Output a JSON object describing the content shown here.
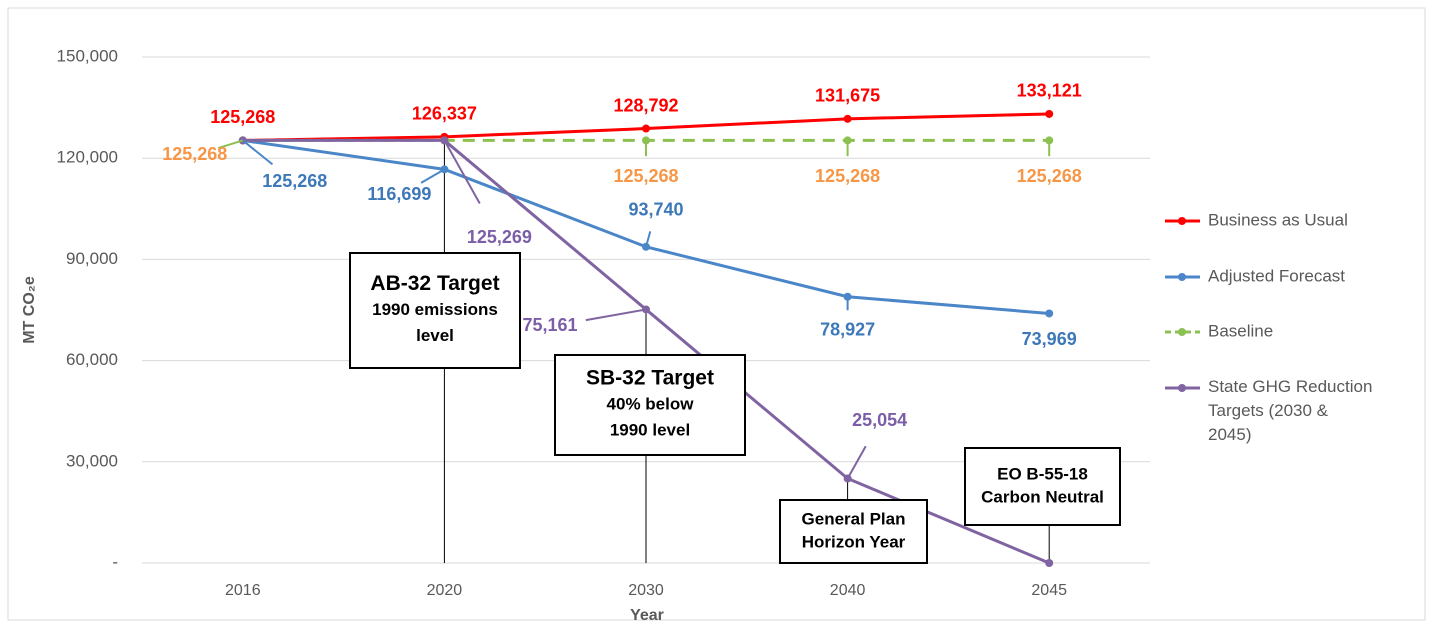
{
  "chart_data": {
    "type": "line",
    "categories": [
      "2016",
      "2020",
      "2030",
      "2040",
      "2045"
    ],
    "x_label": "Year",
    "y_label": "MT CO₂e",
    "ylim": [
      0,
      150000
    ],
    "yticks": [
      {
        "value": 0,
        "label": "-"
      },
      {
        "value": 30000,
        "label": "30,000"
      },
      {
        "value": 60000,
        "label": "60,000"
      },
      {
        "value": 90000,
        "label": "90,000"
      },
      {
        "value": 120000,
        "label": "120,000"
      },
      {
        "value": 150000,
        "label": "150,000"
      }
    ],
    "grid": true,
    "legend": "right",
    "series": [
      {
        "name": "Business as Usual",
        "color": "#ff0000",
        "dashed": false,
        "values": [
          125268,
          126337,
          128792,
          131675,
          133121
        ],
        "value_labels": [
          "125,268",
          "126,337",
          "128,792",
          "131,675",
          "133,121"
        ],
        "label_color": "#ff0000"
      },
      {
        "name": "Adjusted Forecast",
        "color": "#4a86c8",
        "dashed": false,
        "values": [
          125268,
          116699,
          93740,
          78927,
          73969
        ],
        "value_labels": [
          "125,268",
          "116,699",
          "93,740",
          "78,927",
          "73,969"
        ],
        "label_color": "#3d78b8"
      },
      {
        "name": "Baseline",
        "color": "#8cc152",
        "dashed": true,
        "values": [
          125268,
          125268,
          125268,
          125268,
          125268
        ],
        "value_labels": [
          "125,268",
          null,
          "125,268",
          "125,268",
          "125,268"
        ],
        "label_color": "#f79646"
      },
      {
        "name": "State GHG Reduction Targets (2030 & 2045)",
        "color": "#8064a2",
        "dashed": false,
        "values": [
          125268,
          125269,
          75161,
          25054,
          0
        ],
        "value_labels": [
          null,
          "125,269",
          "75,161",
          "25,054",
          null
        ],
        "label_color": "#7b5ea7"
      }
    ],
    "annotations": [
      {
        "title": "AB-32 Target",
        "text": [
          "1990 emissions",
          "level"
        ]
      },
      {
        "title": "SB-32 Target",
        "text": [
          "40% below",
          "1990 level"
        ]
      },
      {
        "title": "General Plan",
        "text": [
          "Horizon Year"
        ]
      },
      {
        "title": "EO B-55-18",
        "text": [
          "Carbon Neutral"
        ]
      }
    ]
  }
}
